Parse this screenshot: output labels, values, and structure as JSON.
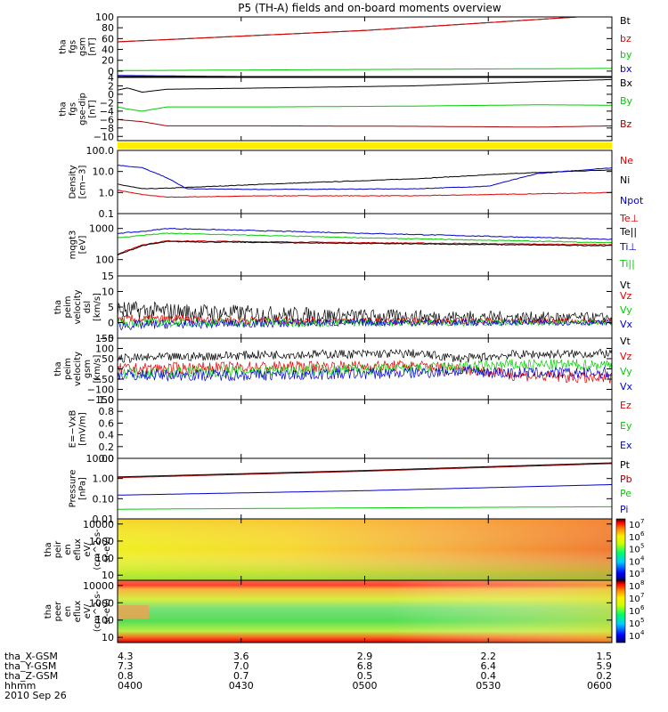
{
  "title": "P5 (TH-A) fields and on-board moments overview",
  "footer": {
    "rows": [
      {
        "label": "tha_X-GSM",
        "values": [
          "4.3",
          "3.6",
          "2.9",
          "2.2",
          "1.5"
        ]
      },
      {
        "label": "tha_Y-GSM",
        "values": [
          "7.3",
          "7.0",
          "6.8",
          "6.4",
          "5.9"
        ]
      },
      {
        "label": "tha_Z-GSM",
        "values": [
          "0.8",
          "0.7",
          "0.5",
          "0.4",
          "0.2"
        ]
      },
      {
        "label": "hhmm",
        "values": [
          "0400",
          "0430",
          "0500",
          "0530",
          "0600"
        ]
      }
    ],
    "date": "2010 Sep 26"
  },
  "colors": {
    "black": "#000000",
    "red": "#e00000",
    "green": "#00cc00",
    "blue": "#0000cc",
    "darkred": "#a00000",
    "yellow": "#ffee00"
  },
  "chart_data": [
    {
      "type": "line",
      "ylabel": [
        "tha",
        "fgs",
        "gsm",
        "[nT]"
      ],
      "ylim": [
        -10,
        100
      ],
      "ticks": [
        "100",
        "80",
        "60",
        "40",
        "20",
        "0"
      ],
      "tick_values": [
        100,
        80,
        60,
        40,
        20,
        0
      ],
      "series": [
        {
          "name": "Bt",
          "color": "#000000",
          "x": [
            0,
            0.5,
            1
          ],
          "y": [
            54,
            75,
            104
          ]
        },
        {
          "name": "bz",
          "color": "#e00000",
          "x": [
            0,
            0.5,
            1
          ],
          "y": [
            54,
            75,
            104
          ]
        },
        {
          "name": "by",
          "color": "#00cc00",
          "x": [
            0,
            0.5,
            1
          ],
          "y": [
            1,
            3,
            5
          ]
        },
        {
          "name": "bx",
          "color": "#0000cc",
          "x": [
            0,
            0.5,
            1
          ],
          "y": [
            -8,
            -12,
            -14
          ]
        }
      ]
    },
    {
      "type": "line",
      "ylabel": [
        "tha",
        "fgs",
        "gse-dip",
        "[nT]"
      ],
      "ylim": [
        -11,
        4
      ],
      "ticks": [
        "4",
        "2",
        "0",
        "−2",
        "−4",
        "−6",
        "−8",
        "−10"
      ],
      "tick_values": [
        4,
        2,
        0,
        -2,
        -4,
        -6,
        -8,
        -10
      ],
      "series": [
        {
          "name": "Bx",
          "color": "#000000",
          "x": [
            0,
            0.02,
            0.05,
            0.1,
            0.3,
            0.6,
            0.85,
            1
          ],
          "y": [
            1,
            1.5,
            0.5,
            1.2,
            1.5,
            2,
            3,
            3.5
          ]
        },
        {
          "name": "By",
          "color": "#00cc00",
          "x": [
            0,
            0.02,
            0.05,
            0.1,
            0.3,
            0.6,
            0.85,
            1
          ],
          "y": [
            -3,
            -3.5,
            -4,
            -3,
            -3,
            -2.8,
            -2.5,
            -2.6
          ]
        },
        {
          "name": "Bz",
          "color": "#a00000",
          "x": [
            0,
            0.05,
            0.1,
            0.3,
            0.6,
            0.85,
            1
          ],
          "y": [
            -6,
            -6.5,
            -7.5,
            -7.5,
            -7.6,
            -7.8,
            -7.5
          ]
        }
      ]
    },
    {
      "type": "line",
      "ylabel": [
        "Density",
        "[cm−3]"
      ],
      "ylim": [
        0.1,
        100
      ],
      "yscale": "log",
      "ticks": [
        "100.0",
        "10.0",
        "1.0",
        "0.1"
      ],
      "tick_values": [
        100,
        10,
        1,
        0.1
      ],
      "series": [
        {
          "name": "Ne",
          "color": "#e00000",
          "x": [
            0,
            0.05,
            0.1,
            0.3,
            0.6,
            0.75,
            1
          ],
          "y": [
            1.3,
            0.8,
            0.6,
            0.7,
            0.7,
            0.8,
            1
          ]
        },
        {
          "name": "Ni",
          "color": "#000000",
          "x": [
            0,
            0.05,
            0.1,
            0.3,
            0.6,
            0.8,
            1
          ],
          "y": [
            2.5,
            1.5,
            1.6,
            2.5,
            4.5,
            8,
            12
          ]
        },
        {
          "name": "Npot",
          "color": "#0000cc",
          "x": [
            0,
            0.05,
            0.1,
            0.14,
            0.3,
            0.6,
            0.75,
            0.85,
            1
          ],
          "y": [
            20,
            15,
            5,
            1.5,
            1.4,
            1.5,
            2,
            8,
            15
          ]
        }
      ]
    },
    {
      "type": "line",
      "ylabel": [
        "mqgt3",
        "[eV]"
      ],
      "ylim": [
        30,
        3000
      ],
      "yscale": "log",
      "ticks": [
        "1000",
        "100"
      ],
      "tick_values": [
        1000,
        100
      ],
      "series": [
        {
          "name": "Te⊥",
          "color": "#e00000",
          "x": [
            0,
            0.05,
            0.1,
            0.5,
            1
          ],
          "y": [
            150,
            300,
            400,
            350,
            300
          ]
        },
        {
          "name": "Te||",
          "color": "#000000",
          "x": [
            0,
            0.05,
            0.1,
            0.5,
            1
          ],
          "y": [
            140,
            280,
            380,
            330,
            280
          ]
        },
        {
          "name": "Ti⊥",
          "color": "#0000cc",
          "x": [
            0,
            0.05,
            0.1,
            0.5,
            1
          ],
          "y": [
            700,
            800,
            1000,
            700,
            450
          ]
        },
        {
          "name": "Ti||",
          "color": "#00cc00",
          "x": [
            0,
            0.05,
            0.1,
            0.5,
            1
          ],
          "y": [
            500,
            600,
            700,
            500,
            350
          ]
        }
      ]
    },
    {
      "type": "line",
      "ylabel": [
        "tha",
        "peim",
        "velocity",
        "dsl",
        "[km/s]"
      ],
      "ylim": [
        -5,
        15
      ],
      "ticks": [
        "15",
        "10",
        "5",
        "0",
        "−5"
      ],
      "tick_values": [
        15,
        10,
        5,
        0,
        -5
      ],
      "series": [
        {
          "name": "Vt",
          "color": "#000000",
          "x": [
            0,
            0.1,
            0.5,
            1
          ],
          "y": [
            4,
            3.5,
            2,
            1.5
          ]
        },
        {
          "name": "Vz",
          "color": "#e00000",
          "x": [
            0,
            0.1,
            0.5,
            1
          ],
          "y": [
            1,
            1,
            0.5,
            0.5
          ]
        },
        {
          "name": "Vy",
          "color": "#00cc00",
          "x": [
            0,
            0.1,
            0.5,
            1
          ],
          "y": [
            0,
            0,
            0,
            0
          ]
        },
        {
          "name": "Vx",
          "color": "#0000cc",
          "x": [
            0,
            0.1,
            0.5,
            1
          ],
          "y": [
            -1,
            -0.5,
            0,
            0
          ]
        }
      ]
    },
    {
      "type": "line",
      "ylabel": [
        "tha",
        "peim",
        "velocity",
        "gsm",
        "[km/s]"
      ],
      "ylim": [
        -150,
        150
      ],
      "ticks": [
        "150",
        "100",
        "50",
        "0",
        "−50",
        "−100",
        "−150"
      ],
      "tick_values": [
        150,
        100,
        50,
        0,
        -50,
        -100,
        -150
      ],
      "series": [
        {
          "name": "Vt",
          "color": "#000000",
          "x": [
            0,
            0.3,
            0.6,
            0.7,
            0.8,
            1
          ],
          "y": [
            50,
            70,
            75,
            50,
            70,
            75
          ]
        },
        {
          "name": "Vz",
          "color": "#e00000",
          "x": [
            0,
            0.3,
            0.6,
            0.7,
            0.8,
            1
          ],
          "y": [
            0,
            10,
            15,
            0,
            -30,
            -50
          ]
        },
        {
          "name": "Vy",
          "color": "#00cc00",
          "x": [
            0,
            0.3,
            0.6,
            0.7,
            0.8,
            1
          ],
          "y": [
            -20,
            -10,
            0,
            10,
            20,
            20
          ]
        },
        {
          "name": "Vx",
          "color": "#0000cc",
          "x": [
            0,
            0.3,
            0.6,
            0.7,
            0.8,
            1
          ],
          "y": [
            -30,
            -30,
            -20,
            -10,
            -20,
            -20
          ]
        }
      ]
    },
    {
      "type": "line",
      "ylabel": [
        "E=−VxB",
        "[mV/m]"
      ],
      "ylim": [
        0,
        1
      ],
      "ticks": [
        "1.0",
        "0.8",
        "0.6",
        "0.4",
        "0.2",
        "0.0"
      ],
      "tick_values": [
        1,
        0.8,
        0.6,
        0.4,
        0.2,
        0
      ],
      "series": [
        {
          "name": "Ez",
          "color": "#e00000",
          "x": [],
          "y": []
        },
        {
          "name": "Ey",
          "color": "#00cc00",
          "x": [],
          "y": []
        },
        {
          "name": "Ex",
          "color": "#0000cc",
          "x": [],
          "y": []
        }
      ]
    },
    {
      "type": "line",
      "ylabel": [
        "Pressure",
        "[nPa]"
      ],
      "ylim": [
        0.01,
        10
      ],
      "yscale": "log",
      "ticks": [
        "10.00",
        "1.00",
        "0.10",
        "0.01"
      ],
      "tick_values": [
        10,
        1,
        0.1,
        0.01
      ],
      "series": [
        {
          "name": "Pt",
          "color": "#000000",
          "x": [
            0,
            0.5,
            1
          ],
          "y": [
            1.2,
            2.5,
            6
          ]
        },
        {
          "name": "Pb",
          "color": "#a00000",
          "x": [
            0,
            0.5,
            1
          ],
          "y": [
            1.1,
            2.3,
            5.5
          ]
        },
        {
          "name": "Pe",
          "color": "#00cc00",
          "x": [
            0,
            0.5,
            1
          ],
          "y": [
            0.03,
            0.035,
            0.04
          ]
        },
        {
          "name": "Pi",
          "color": "#0000cc",
          "x": [
            0,
            0.5,
            1
          ],
          "y": [
            0.15,
            0.25,
            0.5
          ]
        }
      ]
    },
    {
      "type": "heatmap",
      "ylabel": [
        "tha",
        "peir",
        "en",
        "eflux",
        "eV/",
        "(cm^2-s-",
        "sr-eV)"
      ],
      "ylim": [
        5,
        20000
      ],
      "yscale": "log",
      "ticks": [
        "10000",
        "1000",
        "100",
        "10"
      ],
      "tick_values": [
        10000,
        1000,
        100,
        10
      ],
      "colorbar": {
        "ticks": [
          "10",
          "10",
          "10",
          "10",
          "10"
        ],
        "exponents": [
          "7",
          "6",
          "5",
          "4",
          "3"
        ],
        "range": [
          1000,
          10000000
        ]
      }
    },
    {
      "type": "heatmap",
      "ylabel": [
        "tha",
        "peer",
        "en",
        "eflux",
        "eV/",
        "(cm^2-s-",
        "sr-eV)"
      ],
      "ylim": [
        5,
        20000
      ],
      "yscale": "log",
      "ticks": [
        "10000",
        "1000",
        "100",
        "10"
      ],
      "tick_values": [
        10000,
        1000,
        100,
        10
      ],
      "colorbar": {
        "ticks": [
          "10",
          "10",
          "10",
          "10",
          "10"
        ],
        "exponents": [
          "8",
          "7",
          "6",
          "5",
          "4"
        ],
        "range": [
          10000,
          100000000
        ]
      }
    }
  ]
}
